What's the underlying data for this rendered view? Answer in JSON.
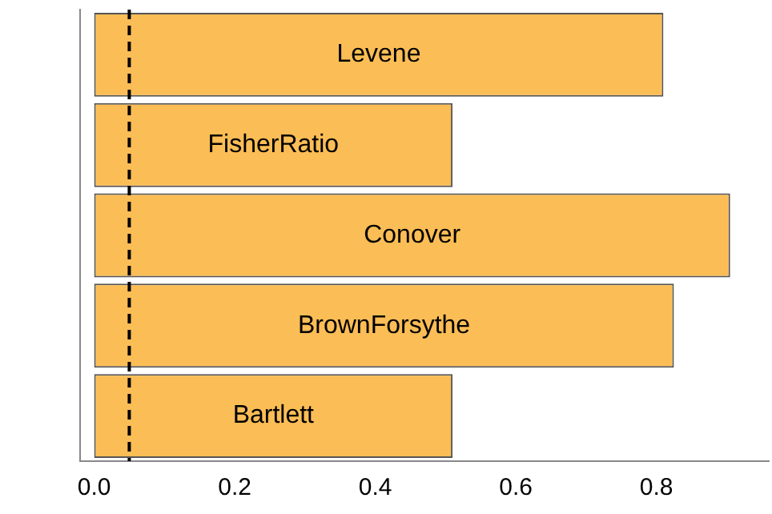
{
  "chart_data": {
    "type": "bar",
    "orientation": "horizontal",
    "categories": [
      "Levene",
      "FisherRatio",
      "Conover",
      "BrownForsythe",
      "Bartlett"
    ],
    "values": [
      0.81,
      0.51,
      0.905,
      0.825,
      0.51
    ],
    "color": "#fbbd55",
    "xlim": [
      -0.02,
      0.96
    ],
    "xticks": [
      {
        "value": 0,
        "label": "0.0"
      },
      0.2,
      0.4,
      0.6,
      0.8
    ],
    "ref_lines": [
      {
        "axis": "x",
        "value": 0.05,
        "line_style": "dashed",
        "color": "#000000"
      }
    ],
    "grid": false,
    "legend": false,
    "tick_labels": "x"
  }
}
